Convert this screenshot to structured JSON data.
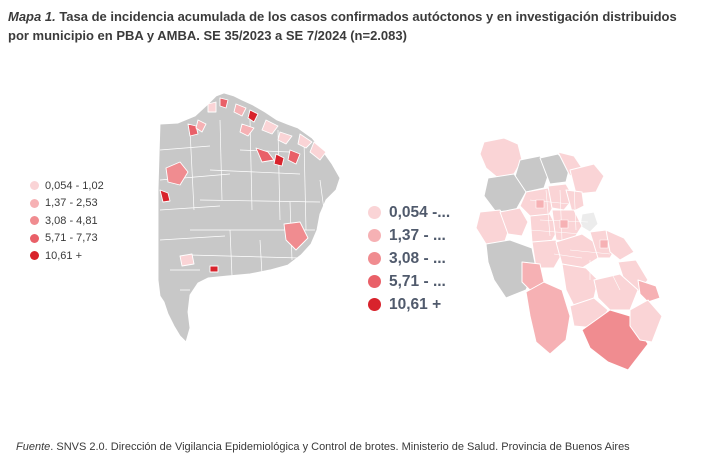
{
  "title": {
    "lead": "Mapa 1.",
    "text": "Tasa de incidencia acumulada de los casos confirmados autóctonos y en investigación distribuidos por municipio en PBA y AMBA. SE 35/2023 a SE 7/2024 (n=2.083)"
  },
  "colors": {
    "no_data": "#c8c8c8",
    "border": "#ffffff",
    "class_1": "#fad4d6",
    "class_2": "#f6b1b4",
    "class_3": "#f08c90",
    "class_4": "#e96068",
    "class_5": "#d8232c"
  },
  "legend_left": {
    "items": [
      {
        "label": "0,054 - 1,02",
        "color": "#fad4d6"
      },
      {
        "label": "1,37 - 2,53",
        "color": "#f6b1b4"
      },
      {
        "label": "3,08 - 4,81",
        "color": "#f08c90"
      },
      {
        "label": "5,71 - 7,73",
        "color": "#e96068"
      },
      {
        "label": "10,61 +",
        "color": "#d8232c"
      }
    ]
  },
  "legend_right": {
    "items": [
      {
        "label": "0,054 -...",
        "color": "#fad4d6"
      },
      {
        "label": "1,37 - ...",
        "color": "#f6b1b4"
      },
      {
        "label": "3,08 - ...",
        "color": "#f08c90"
      },
      {
        "label": "5,71 - ...",
        "color": "#e96068"
      },
      {
        "label": "10,61 +",
        "color": "#d8232c"
      }
    ]
  },
  "maps": {
    "pba": {
      "region": "Provincia de Buenos Aires",
      "icon": "pba-choropleth-map"
    },
    "amba": {
      "region": "AMBA",
      "icon": "amba-choropleth-map"
    }
  },
  "source": {
    "lead": "Fuente",
    "text": ". SNVS 2.0. Dirección de Vigilancia Epidemiológica y Control de brotes. Ministerio de Salud. Provincia de Buenos Aires"
  }
}
